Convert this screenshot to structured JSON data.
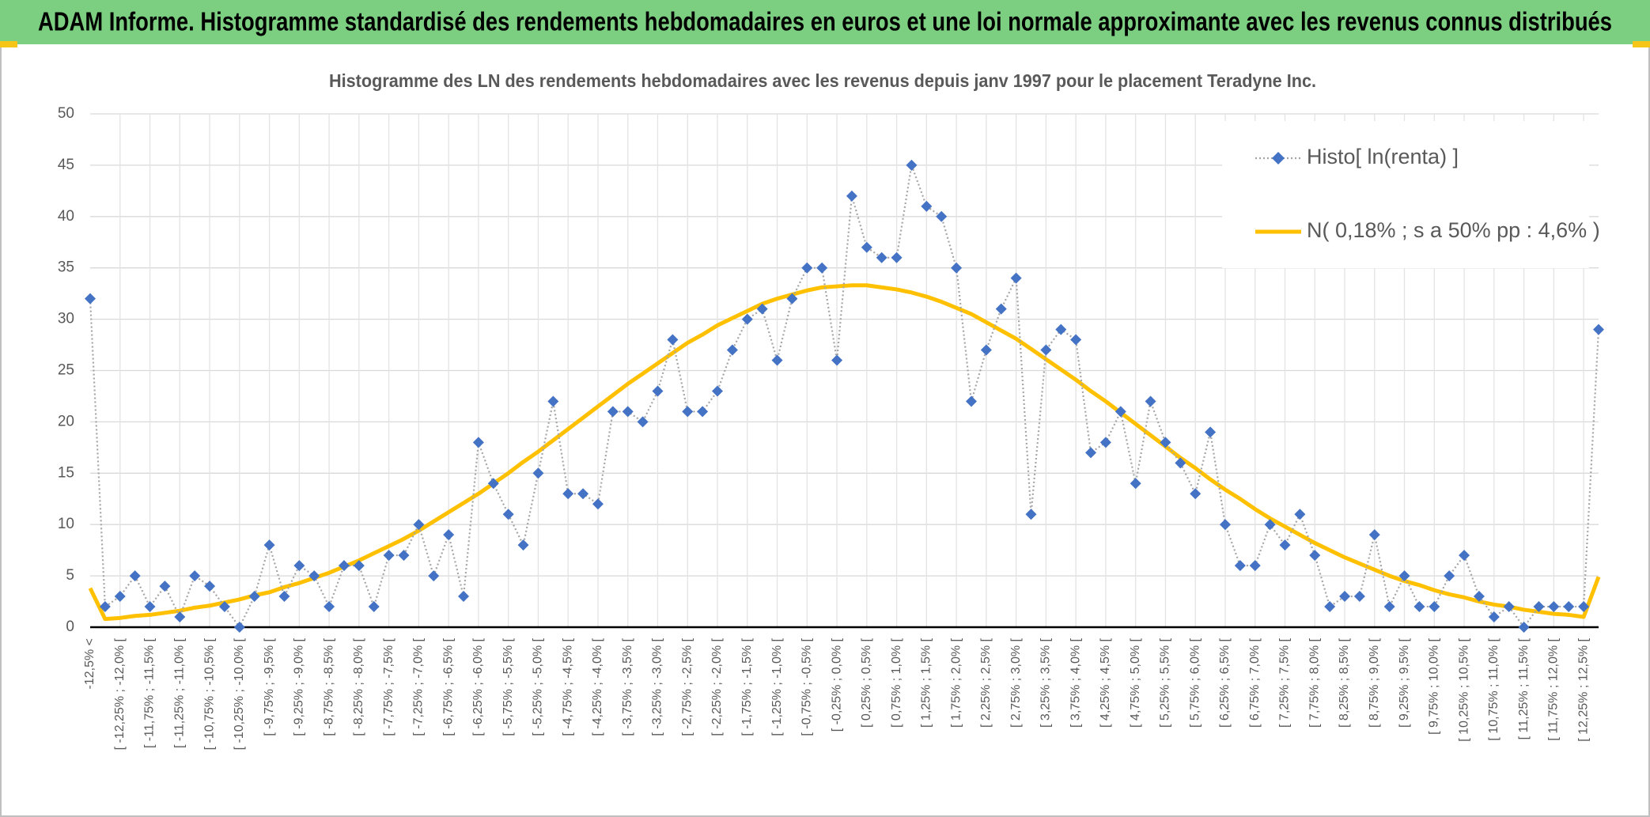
{
  "chart_data": {
    "type": "line",
    "title": "ADAM Informe. Histogramme standardisé des rendements hebdomadaires en euros et une loi normale approximante avec les revenus connus distribués",
    "subtitle": "Histogramme des LN des rendements hebdomadaires avec les revenus depuis janv 1997 pour le placement Teradyne Inc.",
    "categories": [
      "-12,5% <",
      null,
      "[ -12,25% ; -12,0% [",
      null,
      "[ -11,75% ; -11,5% [",
      null,
      "[ -11,25% ; -11,0% [",
      null,
      "[ -10,75% ; -10,5% [",
      null,
      "[ -10,25% ; -10,0% [",
      null,
      "[ -9,75% ; -9,5% [",
      null,
      "[ -9,25% ; -9,0% [",
      null,
      "[ -8,75% ; -8,5% [",
      null,
      "[ -8,25% ; -8,0% [",
      null,
      "[ -7,75% ; -7,5% [",
      null,
      "[ -7,25% ; -7,0% [",
      null,
      "[ -6,75% ; -6,5% [",
      null,
      "[ -6,25% ; -6,0% [",
      null,
      "[ -5,75% ; -5,5% [",
      null,
      "[ -5,25% ; -5,0% [",
      null,
      "[ -4,75% ; -4,5% [",
      null,
      "[ -4,25% ; -4,0% [",
      null,
      "[ -3,75% ; -3,5% [",
      null,
      "[ -3,25% ; -3,0% [",
      null,
      "[ -2,75% ; -2,5% [",
      null,
      "[ -2,25% ; -2,0% [",
      null,
      "[ -1,75% ; -1,5% [",
      null,
      "[ -1,25% ; -1,0% [",
      null,
      "[ -0,75% ; -0,5% [",
      null,
      "[ -0,25% ; 0,0% [",
      null,
      "[ 0,25% ; 0,5% [",
      null,
      "[ 0,75% ; 1,0% [",
      null,
      "[ 1,25% ; 1,5% [",
      null,
      "[ 1,75% ; 2,0% [",
      null,
      "[ 2,25% ; 2,5% [",
      null,
      "[ 2,75% ; 3,0% [",
      null,
      "[ 3,25% ; 3,5% [",
      null,
      "[ 3,75% ; 4,0% [",
      null,
      "[ 4,25% ; 4,5% [",
      null,
      "[ 4,75% ; 5,0% [",
      null,
      "[ 5,25% ; 5,5% [",
      null,
      "[ 5,75% ; 6,0% [",
      null,
      "[ 6,25% ; 6,5% [",
      null,
      "[ 6,75% ; 7,0% [",
      null,
      "[ 7,25% ; 7,5% [",
      null,
      "[ 7,75% ; 8,0% [",
      null,
      "[ 8,25% ; 8,5% [",
      null,
      "[ 8,75% ; 9,0% [",
      null,
      "[ 9,25% ; 9,5% [",
      null,
      "[ 9,75% ; 10,0% [",
      null,
      "[ 10,25% ; 10,5% [",
      null,
      "[ 10,75% ; 11,0% [",
      null,
      "[ 11,25% ; 11,5% [",
      null,
      "[ 11,75% ; 12,0% [",
      null,
      "[ 12,25% ; 12,5% [",
      null
    ],
    "series": [
      {
        "name": "Histo[ ln(renta) ]",
        "color": "#4472c4",
        "marker": "diamond",
        "line_color": "#a5a5a5",
        "line_style": "dotted",
        "values": [
          32,
          2,
          3,
          5,
          2,
          4,
          1,
          5,
          4,
          2,
          0,
          3,
          8,
          3,
          6,
          5,
          2,
          6,
          6,
          2,
          7,
          7,
          10,
          5,
          9,
          3,
          18,
          14,
          11,
          8,
          15,
          22,
          13,
          13,
          12,
          21,
          21,
          20,
          23,
          28,
          21,
          21,
          23,
          27,
          30,
          31,
          26,
          32,
          35,
          35,
          26,
          42,
          37,
          36,
          36,
          45,
          41,
          40,
          35,
          22,
          27,
          31,
          34,
          11,
          27,
          29,
          28,
          17,
          18,
          21,
          14,
          22,
          18,
          16,
          13,
          19,
          10,
          6,
          6,
          10,
          8,
          11,
          7,
          2,
          3,
          3,
          9,
          2,
          5,
          2,
          2,
          5,
          7,
          3,
          1,
          2,
          0,
          2,
          2,
          2,
          2,
          29
        ]
      },
      {
        "name": "N( 0,18% ; s a 50% pp : 4,6% )",
        "color": "#ffc000",
        "values": [
          3.8,
          0.8,
          0.9,
          1.1,
          1.2,
          1.4,
          1.6,
          1.9,
          2.1,
          2.4,
          2.7,
          3.1,
          3.4,
          3.9,
          4.3,
          4.8,
          5.3,
          5.9,
          6.5,
          7.2,
          7.9,
          8.6,
          9.4,
          10.3,
          11.2,
          12.1,
          13.0,
          14.0,
          15.0,
          16.1,
          17.1,
          18.2,
          19.3,
          20.4,
          21.5,
          22.6,
          23.7,
          24.7,
          25.7,
          26.7,
          27.7,
          28.5,
          29.4,
          30.1,
          30.8,
          31.5,
          32.0,
          32.4,
          32.8,
          33.1,
          33.2,
          33.3,
          33.3,
          33.1,
          32.9,
          32.6,
          32.2,
          31.7,
          31.1,
          30.5,
          29.7,
          28.9,
          28.1,
          27.1,
          26.1,
          25.1,
          24.1,
          23.0,
          22.0,
          20.9,
          19.8,
          18.7,
          17.6,
          16.5,
          15.5,
          14.4,
          13.4,
          12.5,
          11.5,
          10.6,
          9.8,
          9.0,
          8.2,
          7.5,
          6.8,
          6.2,
          5.6,
          5.0,
          4.5,
          4.1,
          3.6,
          3.2,
          2.9,
          2.5,
          2.2,
          2.0,
          1.7,
          1.5,
          1.3,
          1.2,
          1.0,
          4.9
        ]
      }
    ],
    "ylim": [
      0,
      50
    ],
    "yticks": [
      0,
      5,
      10,
      15,
      20,
      25,
      30,
      35,
      40,
      45,
      50
    ],
    "grid": true,
    "legend": "upper right"
  }
}
